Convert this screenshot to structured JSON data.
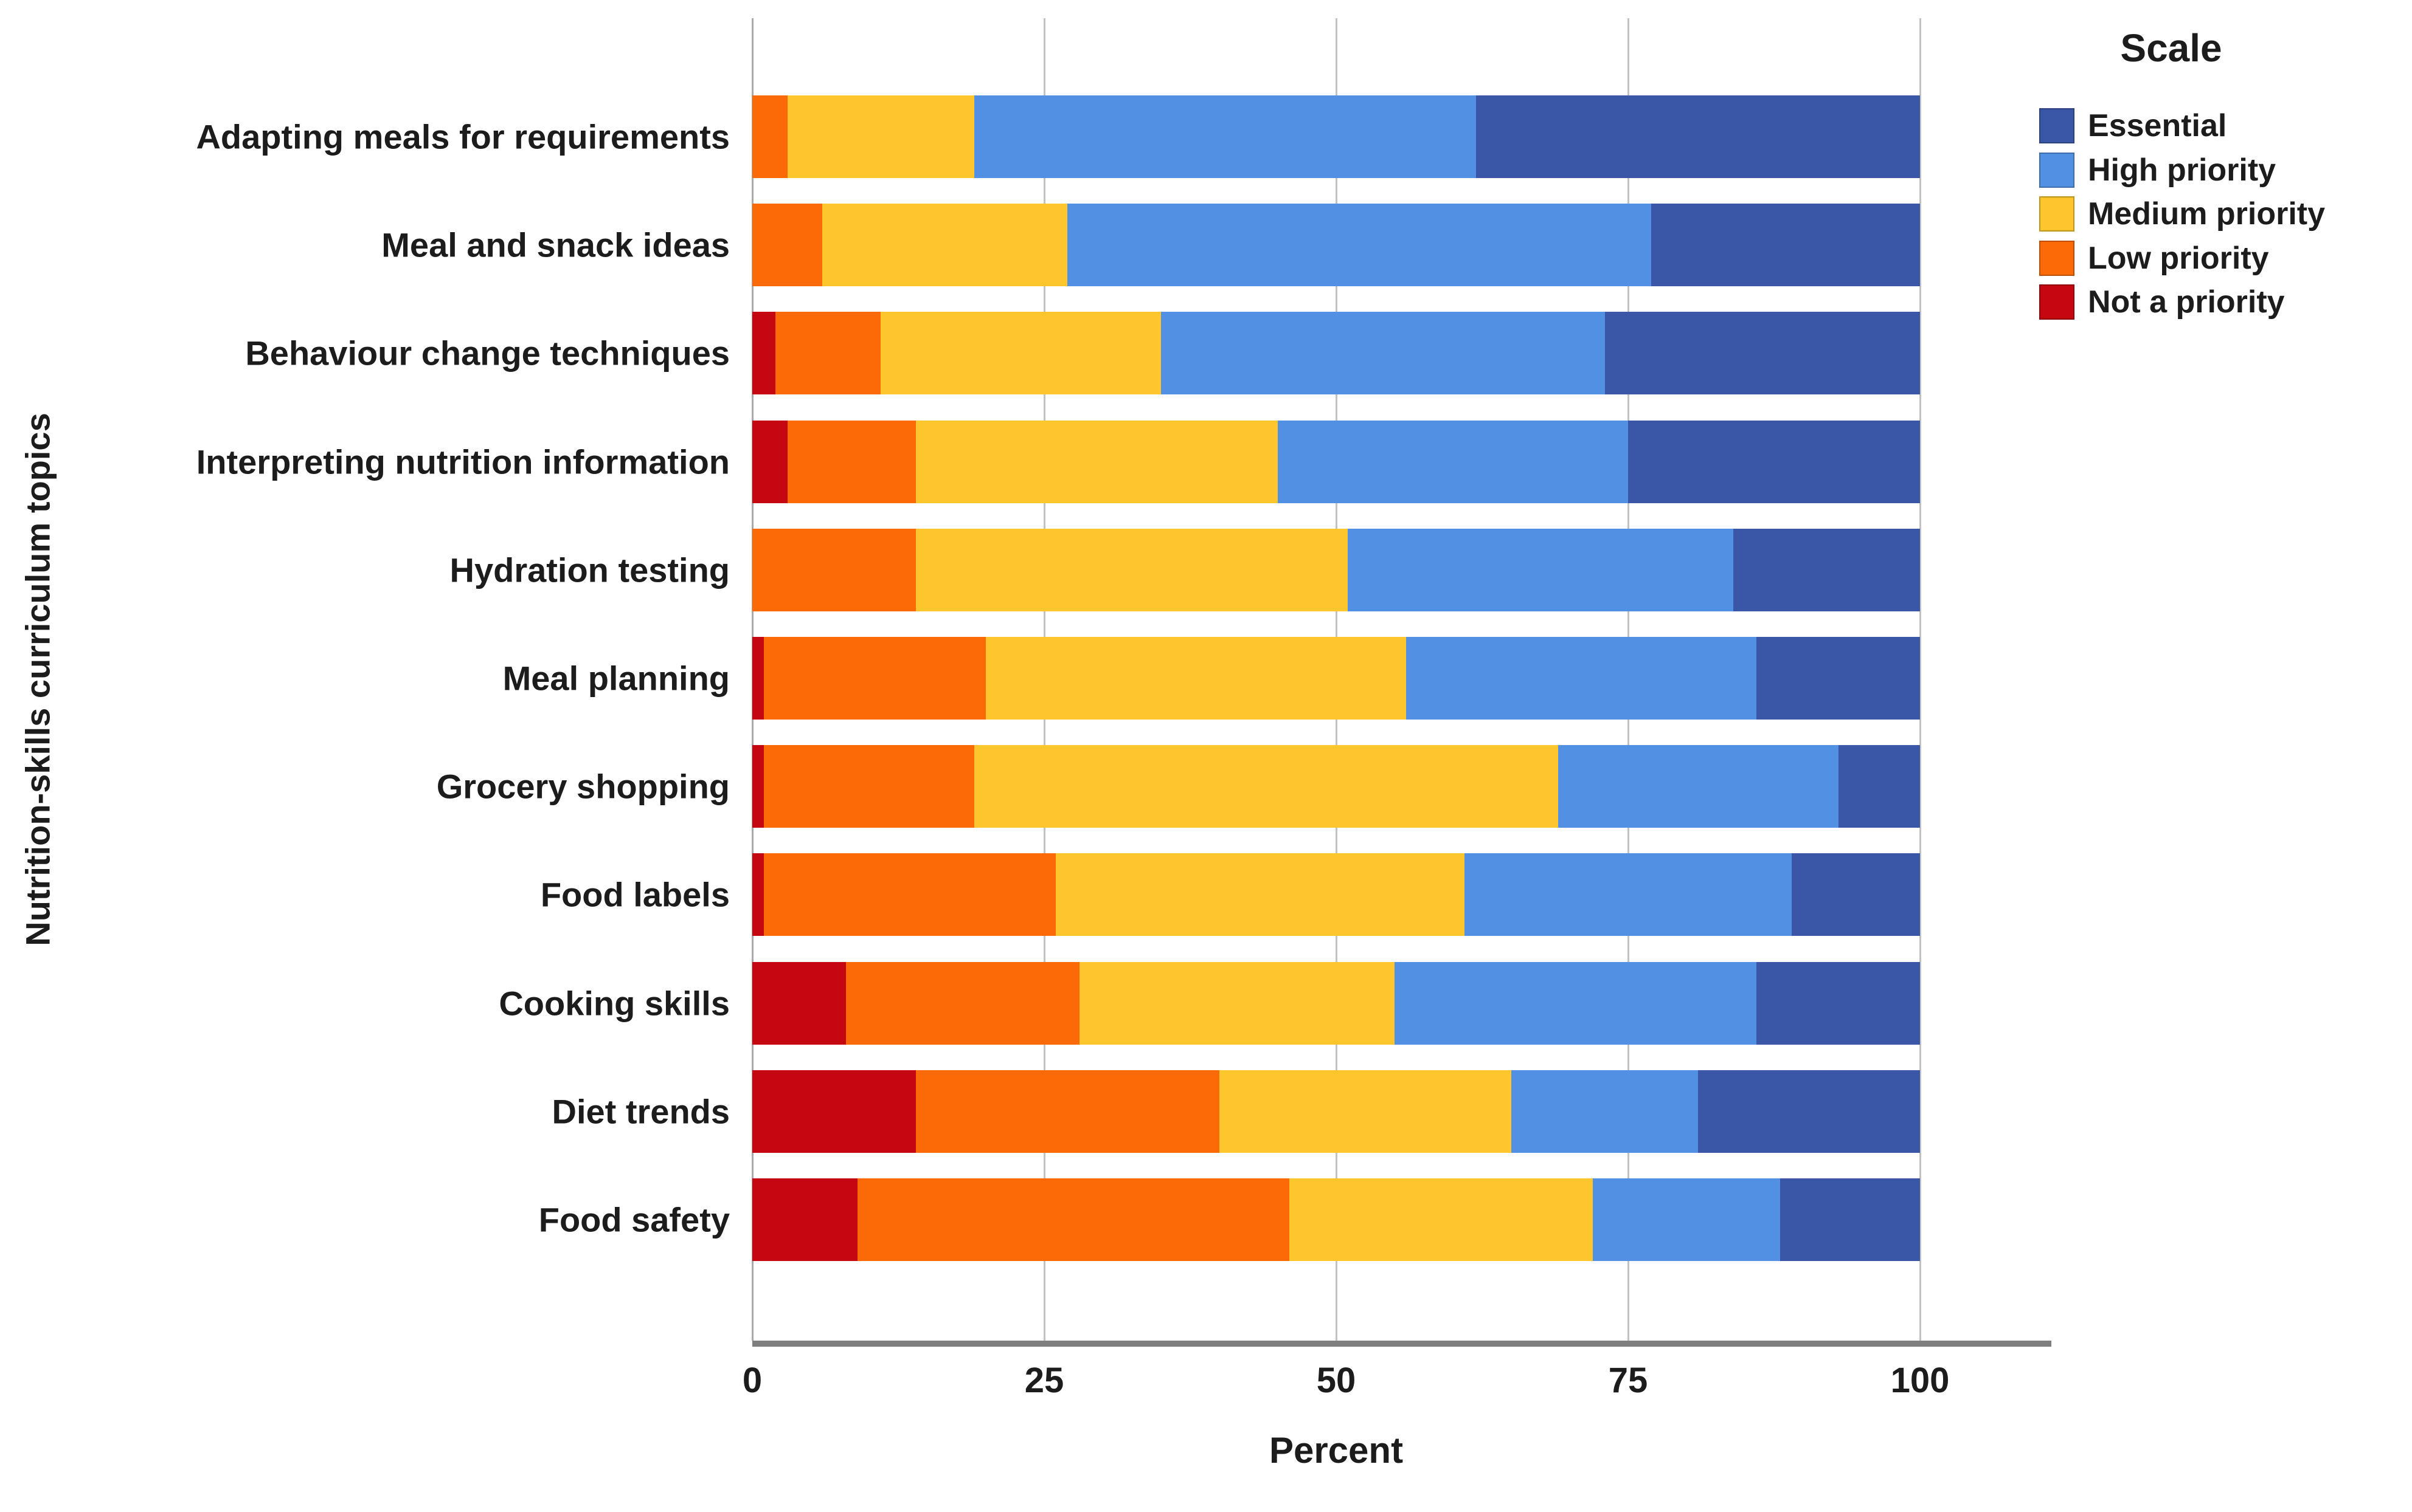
{
  "chart_data": {
    "type": "bar",
    "variant": "horizontal_stacked_100pct",
    "title": "",
    "xlabel": "Percent",
    "ylabel": "Nutrition-skills curriculum topics",
    "legend_title": "Scale",
    "legend_position": "right",
    "xlim": [
      0,
      100
    ],
    "x_ticks": [
      0,
      25,
      50,
      75,
      100
    ],
    "grid": "vertical",
    "categories": [
      "Adapting meals for requirements",
      "Meal and snack ideas",
      "Behaviour change techniques",
      "Interpreting nutrition information",
      "Hydration testing",
      "Meal planning",
      "Grocery shopping",
      "Food labels",
      "Cooking skills",
      "Diet trends",
      "Food safety"
    ],
    "series": [
      {
        "name": "Essential",
        "color": "#3A56A6",
        "values": [
          38,
          23,
          27,
          25,
          16,
          14,
          7,
          11,
          14,
          19,
          12
        ]
      },
      {
        "name": "High priority",
        "color": "#5290E4",
        "values": [
          43,
          50,
          38,
          30,
          33,
          30,
          24,
          28,
          31,
          16,
          16
        ]
      },
      {
        "name": "Medium priority",
        "color": "#FEC62D",
        "values": [
          16,
          21,
          24,
          31,
          37,
          36,
          50,
          35,
          27,
          25,
          26
        ]
      },
      {
        "name": "Low priority",
        "color": "#FB6A07",
        "values": [
          3,
          6,
          9,
          11,
          14,
          19,
          18,
          25,
          20,
          26,
          37
        ]
      },
      {
        "name": "Not a priority",
        "color": "#C40710",
        "values": [
          0,
          0,
          2,
          3,
          0,
          1,
          1,
          1,
          8,
          14,
          9
        ]
      }
    ],
    "stack_order_left_to_right": [
      "Not a priority",
      "Low priority",
      "Medium priority",
      "High priority",
      "Essential"
    ]
  }
}
